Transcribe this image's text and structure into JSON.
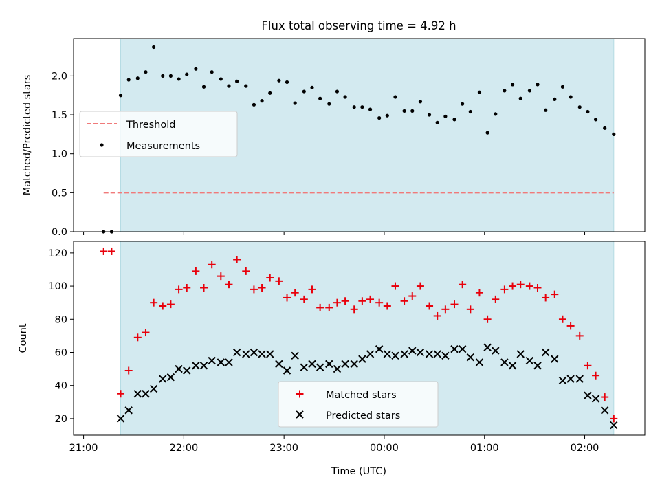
{
  "title": "Flux total observing time = 4.92 h",
  "colors": {
    "shade": "#d3eaf0",
    "shade_edge": "#b5dbe3",
    "threshold": "#f07a7a",
    "matched": "#e8000b",
    "predicted": "#000000",
    "measurement": "#000000"
  },
  "chart_data": [
    {
      "type": "scatter",
      "ylabel": "Matched/Predicted stars",
      "xlim": [
        -0.1,
        5.6
      ],
      "ylim": [
        0,
        2.48
      ],
      "yticks": [
        {
          "v": 0.0,
          "label": "0.0"
        },
        {
          "v": 0.5,
          "label": "0.5"
        },
        {
          "v": 1.0,
          "label": "1.0"
        },
        {
          "v": 1.5,
          "label": "1.5"
        },
        {
          "v": 2.0,
          "label": "2.0"
        }
      ],
      "shaded_span": [
        0.37,
        5.29
      ],
      "threshold": {
        "name": "Threshold",
        "value": 0.5,
        "x": [
          0.2,
          5.29
        ]
      },
      "legend": {
        "position": "center-left",
        "entries": [
          "Threshold",
          "Measurements"
        ]
      },
      "series": [
        {
          "name": "Measurements",
          "x": [
            0.2,
            0.28,
            0.37,
            0.45,
            0.54,
            0.62,
            0.7,
            0.79,
            0.87,
            0.95,
            1.03,
            1.12,
            1.2,
            1.28,
            1.37,
            1.45,
            1.53,
            1.62,
            1.7,
            1.78,
            1.86,
            1.95,
            2.03,
            2.11,
            2.2,
            2.28,
            2.36,
            2.45,
            2.53,
            2.61,
            2.7,
            2.78,
            2.86,
            2.95,
            3.03,
            3.11,
            3.2,
            3.28,
            3.36,
            3.45,
            3.53,
            3.61,
            3.7,
            3.78,
            3.86,
            3.95,
            4.03,
            4.11,
            4.2,
            4.28,
            4.36,
            4.45,
            4.53,
            4.61,
            4.7,
            4.78,
            4.86,
            4.95,
            5.03,
            5.11,
            5.2,
            5.29
          ],
          "y": [
            0,
            0,
            1.75,
            1.95,
            1.97,
            2.05,
            2.37,
            2.0,
            2.0,
            1.96,
            2.02,
            2.09,
            1.86,
            2.05,
            1.96,
            1.87,
            1.93,
            1.87,
            1.63,
            1.68,
            1.78,
            1.94,
            1.92,
            1.65,
            1.8,
            1.85,
            1.71,
            1.64,
            1.8,
            1.73,
            1.6,
            1.6,
            1.57,
            1.46,
            1.49,
            1.73,
            1.55,
            1.55,
            1.67,
            1.5,
            1.4,
            1.48,
            1.44,
            1.64,
            1.54,
            1.79,
            1.27,
            1.51,
            1.81,
            1.89,
            1.71,
            1.81,
            1.89,
            1.56,
            1.7,
            1.86,
            1.73,
            1.6,
            1.54,
            1.44,
            1.33,
            1.25
          ]
        }
      ]
    },
    {
      "type": "scatter",
      "ylabel": "Count",
      "xlabel": "Time (UTC)",
      "xlim": [
        -0.1,
        5.6
      ],
      "ylim": [
        10,
        127
      ],
      "yticks": [
        {
          "v": 20,
          "label": "20"
        },
        {
          "v": 40,
          "label": "40"
        },
        {
          "v": 60,
          "label": "60"
        },
        {
          "v": 80,
          "label": "80"
        },
        {
          "v": 100,
          "label": "100"
        },
        {
          "v": 120,
          "label": "120"
        }
      ],
      "xticks": [
        {
          "v": 0,
          "label": "21:00"
        },
        {
          "v": 1,
          "label": "22:00"
        },
        {
          "v": 2,
          "label": "23:00"
        },
        {
          "v": 3,
          "label": "00:00"
        },
        {
          "v": 4,
          "label": "01:00"
        },
        {
          "v": 5,
          "label": "02:00"
        }
      ],
      "shaded_span": [
        0.37,
        5.29
      ],
      "legend": {
        "position": "lower-center",
        "entries": [
          "Matched stars",
          "Predicted stars"
        ]
      },
      "series": [
        {
          "name": "Matched stars",
          "marker": "plus",
          "x": [
            0.2,
            0.28,
            0.37,
            0.45,
            0.54,
            0.62,
            0.7,
            0.79,
            0.87,
            0.95,
            1.03,
            1.12,
            1.2,
            1.28,
            1.37,
            1.45,
            1.53,
            1.62,
            1.7,
            1.78,
            1.86,
            1.95,
            2.03,
            2.11,
            2.2,
            2.28,
            2.36,
            2.45,
            2.53,
            2.61,
            2.7,
            2.78,
            2.86,
            2.95,
            3.03,
            3.11,
            3.2,
            3.28,
            3.36,
            3.45,
            3.53,
            3.61,
            3.7,
            3.78,
            3.86,
            3.95,
            4.03,
            4.11,
            4.2,
            4.28,
            4.36,
            4.45,
            4.53,
            4.61,
            4.7,
            4.78,
            4.86,
            4.95,
            5.03,
            5.11,
            5.2,
            5.29
          ],
          "y": [
            121,
            121,
            35,
            49,
            69,
            72,
            90,
            88,
            89,
            98,
            99,
            109,
            99,
            113,
            106,
            101,
            116,
            109,
            98,
            99,
            105,
            103,
            93,
            96,
            92,
            98,
            87,
            87,
            90,
            91,
            86,
            91,
            92,
            90,
            88,
            100,
            91,
            94,
            100,
            88,
            82,
            86,
            89,
            101,
            86,
            96,
            80,
            92,
            98,
            100,
            101,
            100,
            99,
            93,
            95,
            80,
            76,
            70,
            52,
            46,
            33,
            20
          ]
        },
        {
          "name": "Predicted stars",
          "marker": "x",
          "x": [
            0.37,
            0.45,
            0.54,
            0.62,
            0.7,
            0.79,
            0.87,
            0.95,
            1.03,
            1.12,
            1.2,
            1.28,
            1.37,
            1.45,
            1.53,
            1.62,
            1.7,
            1.78,
            1.86,
            1.95,
            2.03,
            2.11,
            2.2,
            2.28,
            2.36,
            2.45,
            2.53,
            2.61,
            2.7,
            2.78,
            2.86,
            2.95,
            3.03,
            3.11,
            3.2,
            3.28,
            3.36,
            3.45,
            3.53,
            3.61,
            3.7,
            3.78,
            3.86,
            3.95,
            4.03,
            4.11,
            4.2,
            4.28,
            4.36,
            4.45,
            4.53,
            4.61,
            4.7,
            4.78,
            4.86,
            4.95,
            5.03,
            5.11,
            5.2,
            5.29
          ],
          "y": [
            20,
            25,
            35,
            35,
            38,
            44,
            45,
            50,
            49,
            52,
            52,
            55,
            54,
            54,
            60,
            59,
            60,
            59,
            59,
            53,
            49,
            58,
            51,
            53,
            51,
            53,
            50,
            53,
            53,
            56,
            59,
            62,
            59,
            58,
            59,
            61,
            60,
            59,
            59,
            58,
            62,
            62,
            57,
            54,
            63,
            61,
            54,
            52,
            59,
            55,
            52,
            60,
            56,
            43,
            44,
            44,
            34,
            32,
            25,
            16
          ]
        }
      ]
    }
  ]
}
